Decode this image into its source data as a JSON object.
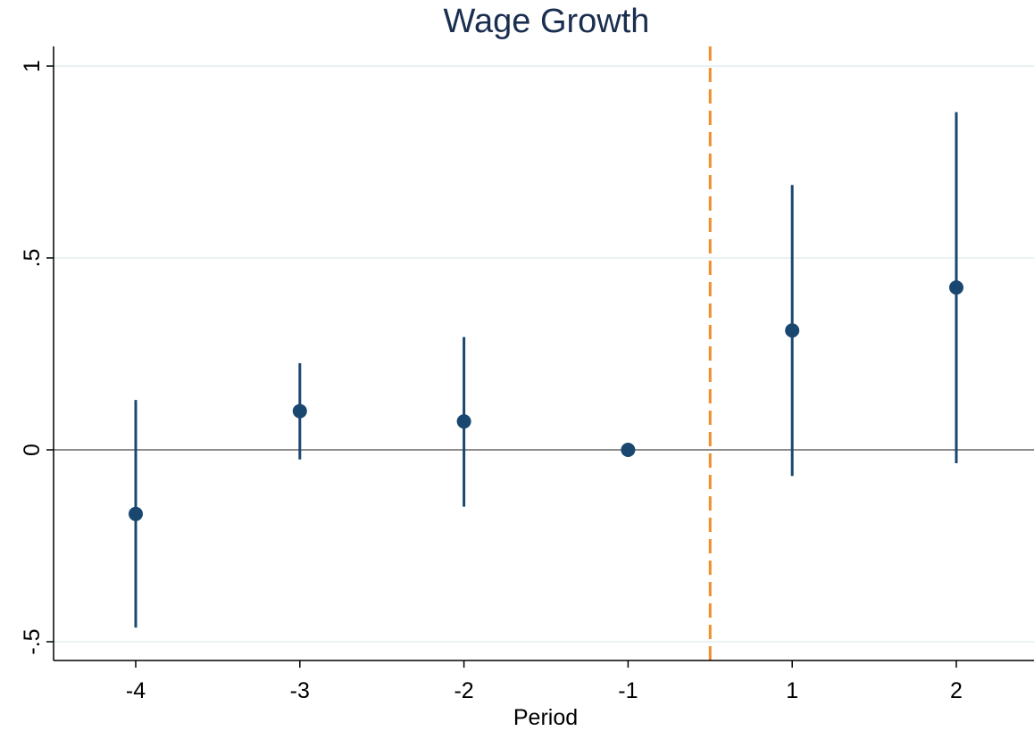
{
  "chart_data": {
    "type": "scatter",
    "title": "Wage Growth",
    "xlabel": "Period",
    "ylabel": "",
    "categories": [
      "-4",
      "-3",
      "-2",
      "-1",
      "1",
      "2"
    ],
    "estimates": [
      -0.167,
      0.101,
      0.074,
      0.0,
      0.311,
      0.423
    ],
    "ci_lower": [
      -0.463,
      -0.025,
      -0.148,
      0.0,
      -0.068,
      -0.035
    ],
    "ci_upper": [
      0.13,
      0.226,
      0.294,
      0.0,
      0.69,
      0.88
    ],
    "ylim": [
      -0.55,
      1.07
    ],
    "yticks": [
      {
        "value": -0.5,
        "label": "-.5"
      },
      {
        "value": 0,
        "label": "0"
      },
      {
        "value": 0.5,
        "label": ".5"
      },
      {
        "value": 1,
        "label": "1"
      }
    ],
    "reference_line_y": 0,
    "event_line": {
      "between": [
        "-1",
        "1"
      ],
      "style": "dashed"
    },
    "grid": true,
    "legend": "none"
  },
  "colors": {
    "marker": "#1a476f",
    "event_line": "#f28e2b",
    "reference_line": "#8c8c8c",
    "grid": "#eaf2f3",
    "title": "#1a2e4f"
  }
}
